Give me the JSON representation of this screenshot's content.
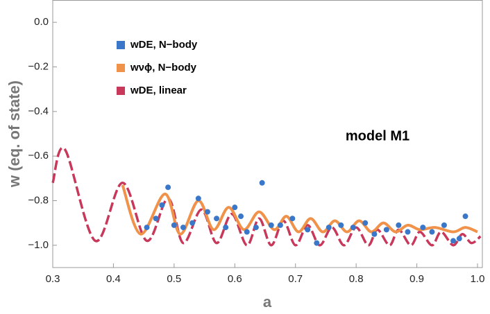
{
  "chart_data": {
    "type": "line",
    "xlabel": "a",
    "ylabel": "w (eq. of state)",
    "annotation": "model M1",
    "xlim": [
      0.3,
      1.008
    ],
    "ylim": [
      -1.1,
      0.1
    ],
    "xticks": [
      0.3,
      0.4,
      0.5,
      0.6,
      0.7,
      0.8,
      0.9,
      {
        "value": 1,
        "label": "1.0"
      }
    ],
    "yticks": [
      {
        "value": 0,
        "label": "0.0"
      },
      {
        "value": -0.2,
        "label": "−0.2"
      },
      {
        "value": -0.4,
        "label": "−0.4"
      },
      {
        "value": -0.6,
        "label": "−0.6"
      },
      {
        "value": -0.8,
        "label": "−0.8"
      },
      {
        "value": -1,
        "label": "−1.0"
      }
    ],
    "legend": "upper left",
    "series": [
      {
        "name": "wDE, N−body",
        "type": "scatter",
        "color": "#3a77c8",
        "x": [
          0.455,
          0.47,
          0.48,
          0.49,
          0.5,
          0.515,
          0.53,
          0.54,
          0.555,
          0.57,
          0.585,
          0.6,
          0.61,
          0.62,
          0.635,
          0.645,
          0.66,
          0.675,
          0.695,
          0.72,
          0.735,
          0.755,
          0.775,
          0.795,
          0.815,
          0.83,
          0.85,
          0.87,
          0.885,
          0.91,
          0.925,
          0.945,
          0.96,
          0.97,
          0.98
        ],
        "values": [
          -0.92,
          -0.88,
          -0.82,
          -0.74,
          -0.91,
          -0.92,
          -0.9,
          -0.79,
          -0.85,
          -0.88,
          -0.92,
          -0.83,
          -0.87,
          -0.94,
          -0.92,
          -0.72,
          -0.91,
          -0.91,
          -0.88,
          -0.93,
          -0.99,
          -0.92,
          -0.91,
          -0.92,
          -0.9,
          -0.95,
          -0.93,
          -0.91,
          -0.94,
          -0.92,
          -0.94,
          -0.91,
          -0.98,
          -0.97,
          -0.87
        ]
      },
      {
        "name": "wνϕ, N−body",
        "type": "line",
        "color": "#f0924a",
        "x": [
          0.415,
          0.445,
          0.485,
          0.51,
          0.54,
          0.565,
          0.59,
          0.615,
          0.64,
          0.665,
          0.685,
          0.705,
          0.725,
          0.745,
          0.765,
          0.785,
          0.805,
          0.825,
          0.845,
          0.865,
          0.885,
          0.905,
          0.93,
          0.96,
          0.98,
          1.0
        ],
        "values": [
          -0.73,
          -0.95,
          -0.77,
          -0.95,
          -0.8,
          -0.93,
          -0.83,
          -0.93,
          -0.85,
          -0.93,
          -0.87,
          -0.94,
          -0.88,
          -0.94,
          -0.89,
          -0.94,
          -0.89,
          -0.94,
          -0.9,
          -0.94,
          -0.91,
          -0.93,
          -0.92,
          -0.94,
          -0.92,
          -0.94
        ]
      },
      {
        "name": "wDE, linear",
        "type": "dashed",
        "color": "#c7385a",
        "x": [
          0.3,
          0.32,
          0.37,
          0.415,
          0.455,
          0.49,
          0.515,
          0.545,
          0.57,
          0.595,
          0.62,
          0.64,
          0.66,
          0.68,
          0.7,
          0.72,
          0.74,
          0.76,
          0.78,
          0.8,
          0.82,
          0.835,
          0.855,
          0.87,
          0.89,
          0.905,
          0.925,
          0.94,
          0.96,
          0.975,
          0.99,
          1.005
        ],
        "values": [
          -0.72,
          -0.57,
          -0.98,
          -0.72,
          -0.98,
          -0.79,
          -0.99,
          -0.84,
          -0.99,
          -0.86,
          -1.0,
          -0.88,
          -1.0,
          -0.89,
          -1.0,
          -0.91,
          -1.0,
          -0.92,
          -1.0,
          -0.92,
          -1.0,
          -0.93,
          -1.0,
          -0.93,
          -1.0,
          -0.94,
          -1.0,
          -0.94,
          -1.0,
          -0.95,
          -0.99,
          -0.96
        ]
      }
    ]
  }
}
